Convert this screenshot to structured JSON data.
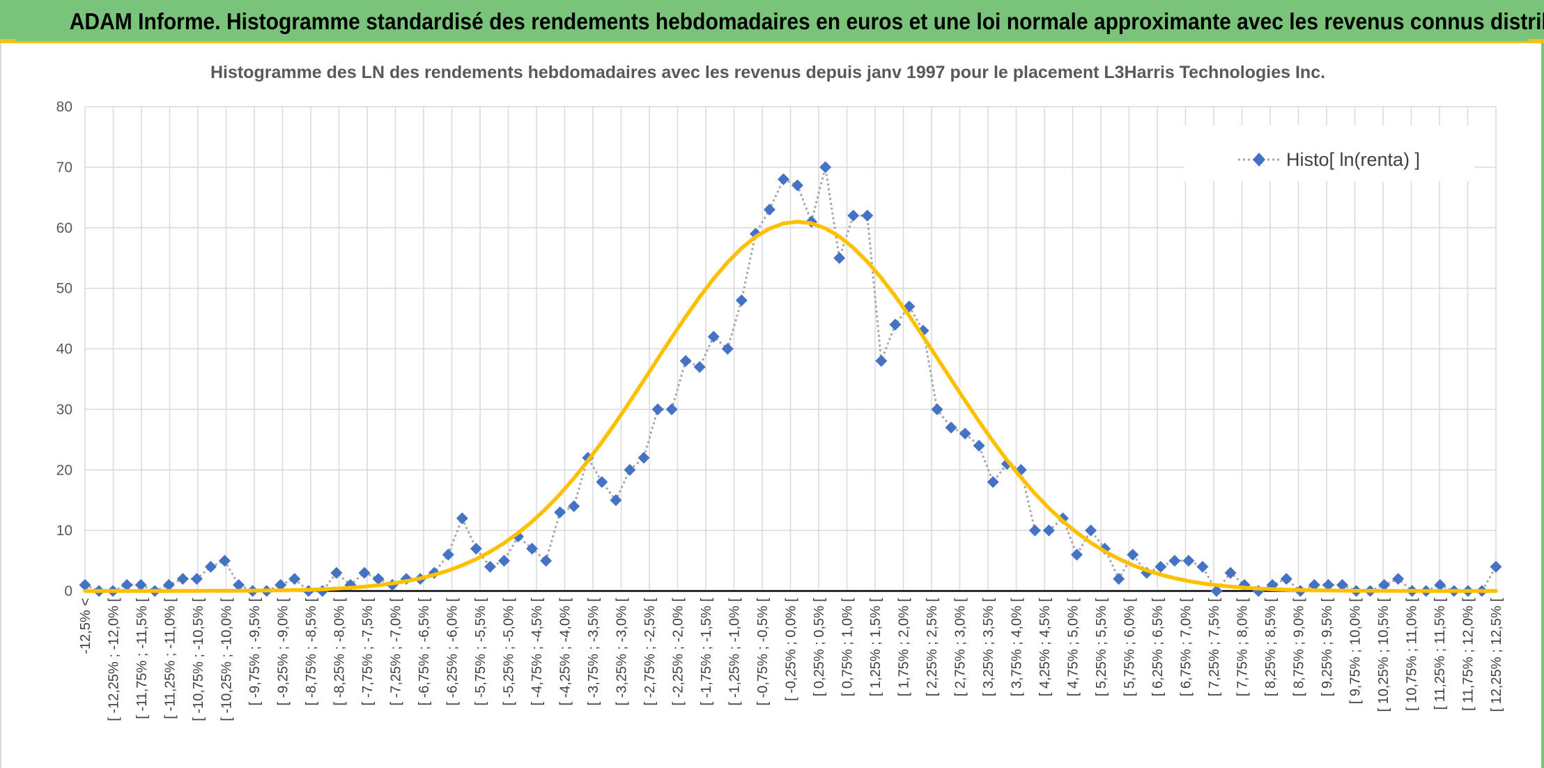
{
  "header": {
    "banner_title": "ADAM Informe. Histogramme standardisé des rendements hebdomadaires en euros et une loi normale approximante avec les revenus connus distribués"
  },
  "colors": {
    "banner_bg": "#79c47a",
    "banner_accent": "#f2c21a",
    "histogram": "#4472c4",
    "histogram_line": "#a6a6a6",
    "normal_curve": "#ffc000",
    "gridline": "#d9d9d9",
    "axis": "#000000"
  },
  "chart_data": {
    "type": "line",
    "title": "Histogramme des LN des rendements hebdomadaires avec les revenus depuis janv 1997 pour le placement L3Harris  Technologies Inc.",
    "xlabel": "",
    "ylabel": "",
    "ylim": [
      0,
      80
    ],
    "yticks": [
      0,
      10,
      20,
      30,
      40,
      50,
      60,
      70,
      80
    ],
    "grid": true,
    "legend_position": "top-right",
    "categories": [
      "-12,5% <",
      "[ -12,25% ; -12,0% [",
      "[ -11,75% ; -11,5% [",
      "[ -11,25% ; -11,0% [",
      "[ -10,75% ; -10,5% [",
      "[ -10,25% ; -10,0% [",
      "[ -9,75% ; -9,5% [",
      "[ -9,25% ; -9,0% [",
      "[ -8,75% ; -8,5% [",
      "[ -8,25% ; -8,0% [",
      "[ -7,75% ; -7,5% [",
      "[ -7,25% ; -7,0% [",
      "[ -6,75% ; -6,5% [",
      "[ -6,25% ; -6,0% [",
      "[ -5,75% ; -5,5% [",
      "[ -5,25% ; -5,0% [",
      "[ -4,75% ; -4,5% [",
      "[ -4,25% ; -4,0% [",
      "[ -3,75% ; -3,5% [",
      "[ -3,25% ; -3,0% [",
      "[ -2,75% ; -2,5% [",
      "[ -2,25% ; -2,0% [",
      "[ -1,75% ; -1,5% [",
      "[ -1,25% ; -1,0% [",
      "[ -0,75% ; -0,5% [",
      "[ -0,25% ; 0,0% [",
      "[ 0,25% ; 0,5% [",
      "[ 0,75% ; 1,0% [",
      "[ 1,25% ; 1,5% [",
      "[ 1,75% ; 2,0% [",
      "[ 2,25% ; 2,5% [",
      "[ 2,75% ; 3,0% [",
      "[ 3,25% ; 3,5% [",
      "[ 3,75% ; 4,0% [",
      "[ 4,25% ; 4,5% [",
      "[ 4,75% ; 5,0% [",
      "[ 5,25% ; 5,5% [",
      "[ 5,75% ; 6,0% [",
      "[ 6,25% ; 6,5% [",
      "[ 6,75% ; 7,0% [",
      "[ 7,25% ; 7,5% [",
      "[ 7,75% ; 8,0% [",
      "[ 8,25% ; 8,5% [",
      "[ 8,75% ; 9,0% [",
      "[ 9,25% ; 9,5% [",
      "[ 9,75% ; 10,0% [",
      "[ 10,25% ; 10,5% [",
      "[ 10,75% ; 11,0% [",
      "[ 11,25% ; 11,5% [",
      "[ 11,75% ; 12,0% [",
      "[ 12,25% ; 12,5% ["
    ],
    "series": [
      {
        "name": "Histo[ ln(renta) ]",
        "kind": "histogram",
        "marker": "diamond",
        "values": [
          1,
          0,
          0,
          1,
          1,
          0,
          1,
          2,
          2,
          4,
          5,
          1,
          0,
          0,
          1,
          2,
          0,
          0,
          3,
          1,
          3,
          2,
          1,
          2,
          2,
          3,
          6,
          12,
          7,
          4,
          5,
          9,
          7,
          5,
          13,
          14,
          22,
          18,
          15,
          20,
          22,
          30,
          30,
          38,
          37,
          42,
          40,
          48,
          59,
          63,
          68,
          67,
          61,
          70,
          55,
          62,
          62,
          38,
          44,
          47,
          43,
          30,
          27,
          26,
          24,
          18,
          21,
          20,
          10,
          10,
          12,
          6,
          10,
          7,
          2,
          6,
          3,
          4,
          5,
          5,
          4,
          0,
          3,
          1,
          0,
          1,
          2,
          0,
          1,
          1,
          1,
          0,
          0,
          1,
          2,
          0,
          0,
          1,
          0,
          0,
          0,
          4
        ]
      },
      {
        "name": "",
        "kind": "normal_fit",
        "mean_pct": 0.13,
        "sd_pct": 2.6,
        "peak": 61
      }
    ]
  }
}
